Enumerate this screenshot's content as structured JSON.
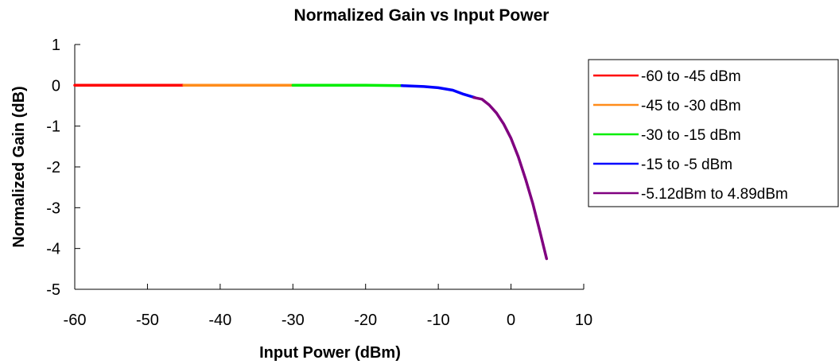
{
  "chart_data": {
    "type": "line",
    "title": "Normalized Gain vs Input Power",
    "xlabel": "Input Power (dBm)",
    "ylabel": "Normalized Gain (dB)",
    "xlim": [
      -60,
      10
    ],
    "ylim": [
      -5,
      1
    ],
    "x_ticks": [
      -60,
      -50,
      -40,
      -30,
      -20,
      -10,
      0,
      10
    ],
    "y_ticks": [
      1,
      0,
      -1,
      -2,
      -3,
      -4,
      -5
    ],
    "grid": false,
    "legend_position": "right",
    "series": [
      {
        "name": "-60 to -45 dBm",
        "color": "#ff0000",
        "x": [
          -60,
          -55,
          -50,
          -45
        ],
        "y": [
          0.0,
          0.0,
          0.0,
          0.0
        ]
      },
      {
        "name": "-45 to -30 dBm",
        "color": "#ff8c1a",
        "x": [
          -45,
          -40,
          -35,
          -30
        ],
        "y": [
          0.0,
          0.0,
          0.0,
          0.0
        ]
      },
      {
        "name": "-30 to -15 dBm",
        "color": "#00ee00",
        "x": [
          -30,
          -25,
          -20,
          -15
        ],
        "y": [
          0.0,
          0.0,
          0.0,
          -0.01
        ]
      },
      {
        "name": "-15 to -5 dBm",
        "color": "#0000ff",
        "x": [
          -15,
          -12,
          -10,
          -8,
          -6.5,
          -5
        ],
        "y": [
          -0.01,
          -0.03,
          -0.06,
          -0.12,
          -0.22,
          -0.3
        ]
      },
      {
        "name": "-5.12dBm to 4.89dBm",
        "color": "#800080",
        "x": [
          -5.12,
          -4,
          -3,
          -2,
          -1,
          0,
          1,
          2,
          3,
          4,
          4.89
        ],
        "y": [
          -0.3,
          -0.34,
          -0.48,
          -0.68,
          -0.95,
          -1.3,
          -1.75,
          -2.3,
          -2.9,
          -3.6,
          -4.25
        ]
      }
    ]
  }
}
